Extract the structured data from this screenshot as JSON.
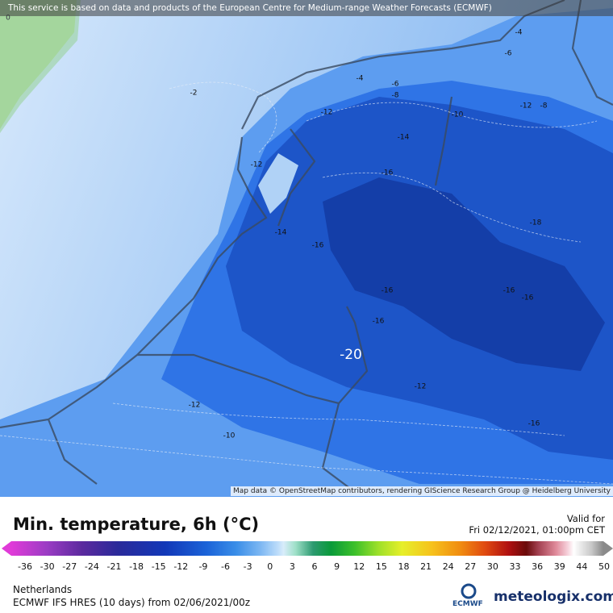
{
  "header": {
    "source_notice": "This service is based on data and products of the European Centre for Medium-range Weather Forecasts (ECMWF)"
  },
  "map": {
    "attribution": "Map data © OpenStreetMap contributors, rendering GIScience Research Group @ Heidelberg University",
    "contour_labels": [
      "0",
      "-4",
      "-6",
      "-4",
      "-6",
      "-8",
      "-2",
      "-12",
      "-10",
      "-12",
      "-8",
      "-14",
      "-12",
      "-16",
      "-18",
      "-14",
      "-16",
      "-16",
      "-16",
      "-16",
      "-16",
      "-20",
      "-12",
      "-12",
      "-16",
      "-10"
    ]
  },
  "legend": {
    "title": "Min. temperature, 6h (°C)",
    "valid_label": "Valid for",
    "valid_time": "Fri 02/12/2021, 01:00pm CET",
    "ticks": [
      "-36",
      "-30",
      "-27",
      "-24",
      "-21",
      "-18",
      "-15",
      "-12",
      "-9",
      "-6",
      "-3",
      "0",
      "3",
      "6",
      "9",
      "12",
      "15",
      "18",
      "21",
      "24",
      "27",
      "30",
      "33",
      "36",
      "39",
      "44",
      "50"
    ]
  },
  "footer": {
    "region": "Netherlands",
    "model_run": "ECMWF IFS HRES (10 days) from 02/06/2021/00z",
    "ecmwf_logo": "ECMWF",
    "brand": "meteologix.com"
  }
}
